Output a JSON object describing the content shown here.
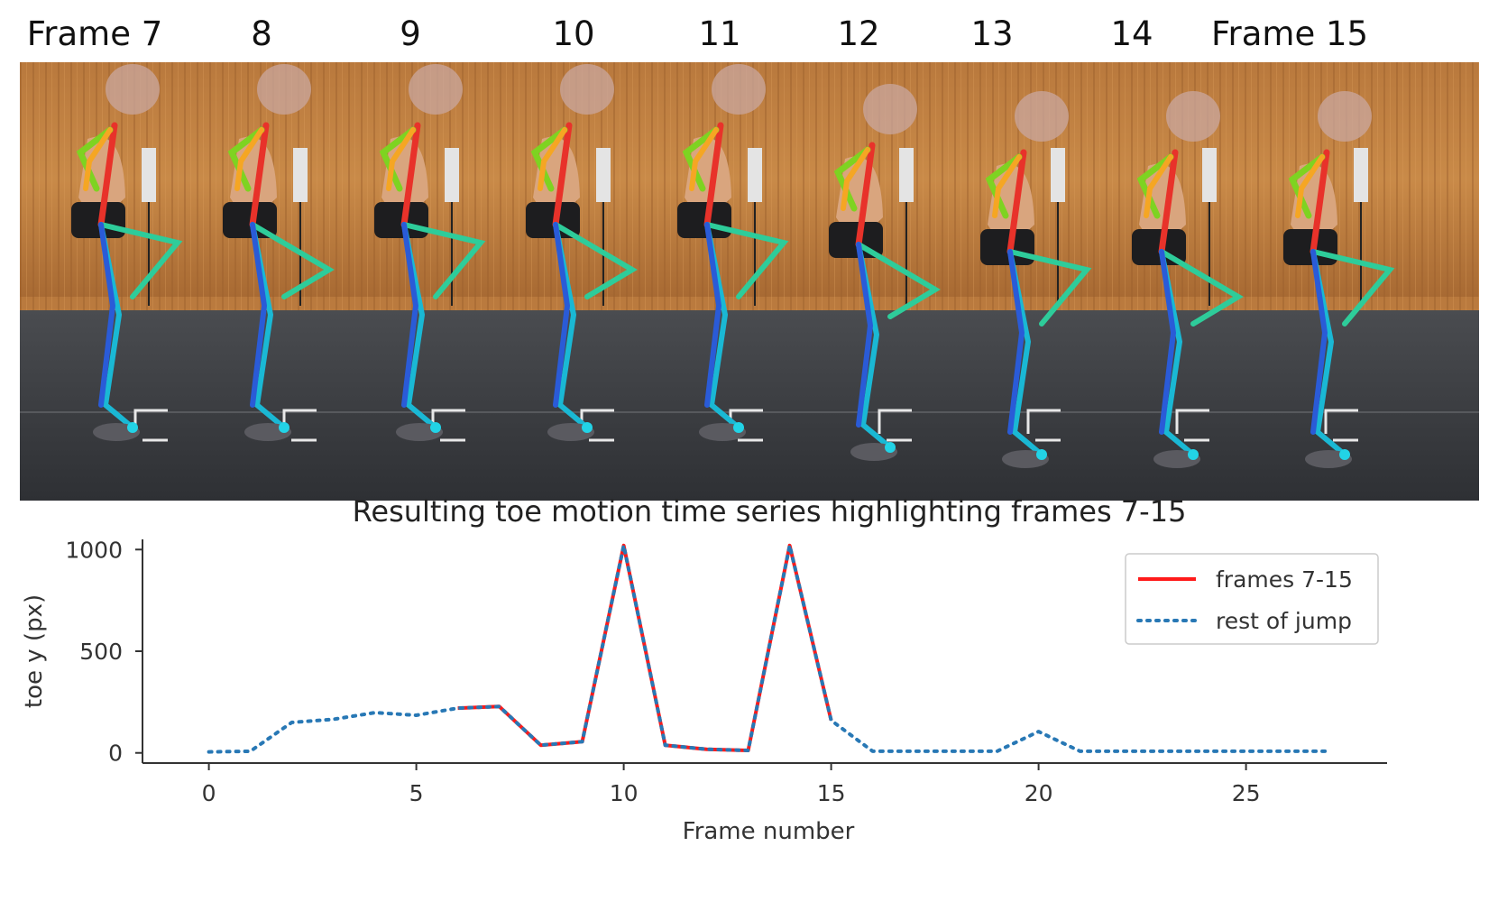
{
  "frame_labels": [
    "Frame 7",
    "8",
    "9",
    "10",
    "11",
    "12",
    "13",
    "14",
    "Frame 15"
  ],
  "colors": {
    "highlight": "#ff1a1a",
    "rest": "#2878b5",
    "axis": "#333333"
  },
  "chart_data": {
    "type": "line",
    "title": "Resulting toe motion time series highlighting frames 7-15",
    "xlabel": "Frame number",
    "ylabel": "toe y (px)",
    "xlim": [
      -1.6,
      28.4
    ],
    "ylim": [
      -50,
      1050
    ],
    "xticks": [
      0,
      5,
      10,
      15,
      20,
      25
    ],
    "yticks": [
      0,
      500,
      1000
    ],
    "legend_position": "top-right",
    "series": [
      {
        "name": "frames 7-15",
        "style": "solid",
        "x": [
          6,
          7,
          8,
          9,
          10,
          11,
          12,
          13,
          14,
          15
        ],
        "y": [
          220,
          228,
          38,
          55,
          1020,
          38,
          18,
          12,
          1020,
          160
        ]
      },
      {
        "name": "rest of jump",
        "style": "dotted",
        "x": [
          0,
          1,
          2,
          3,
          4,
          5,
          6,
          7,
          8,
          9,
          10,
          11,
          12,
          13,
          14,
          15,
          16,
          17,
          18,
          19,
          20,
          21,
          22,
          23,
          24,
          25,
          26,
          27
        ],
        "y": [
          5,
          8,
          150,
          165,
          198,
          185,
          220,
          228,
          38,
          55,
          1020,
          38,
          18,
          12,
          1020,
          160,
          8,
          8,
          8,
          8,
          105,
          8,
          8,
          8,
          8,
          8,
          8,
          8
        ]
      }
    ]
  }
}
